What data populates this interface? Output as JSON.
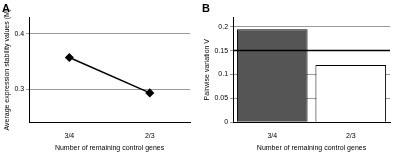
{
  "chart_data": [
    {
      "type": "line",
      "title": "A",
      "x_label": "Number of remaining control genes",
      "y_label": "Average expression stability values (M)",
      "categories": [
        "3/4",
        "2/3"
      ],
      "values": [
        0.357,
        0.293
      ],
      "color": "#000000",
      "marker": "diamond",
      "ylim": [
        0.24,
        0.43
      ],
      "yticks": [
        0.3,
        0.4
      ],
      "grid": true
    },
    {
      "type": "bar",
      "title": "B",
      "x_label": "Number of remaining control genes",
      "y_label": "Pairwise variation V",
      "categories": [
        "3/4",
        "2/3"
      ],
      "values": [
        0.195,
        0.12
      ],
      "colors": [
        "#555555",
        "#ffffff"
      ],
      "threshold": 0.15,
      "ylim": [
        0,
        0.22
      ],
      "yticks": [
        0,
        0.05,
        0.1,
        0.15,
        0.2
      ],
      "grid": true
    }
  ]
}
